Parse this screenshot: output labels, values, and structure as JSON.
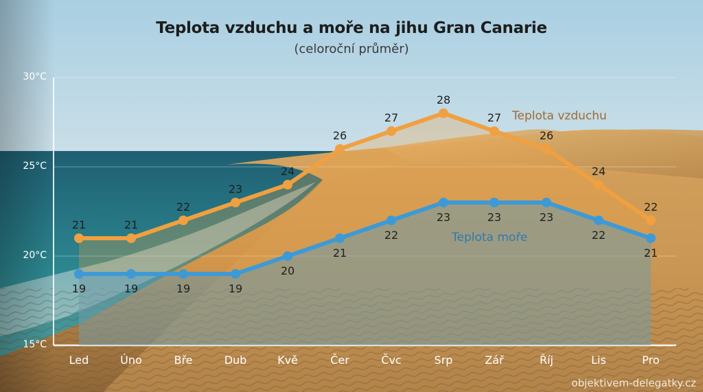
{
  "title": "Teplota vzduchu a moře na jihu Gran Canarie",
  "subtitle": "(celoroční průměr)",
  "credit": "objektivem-delegatky.cz",
  "colors": {
    "air": "#f0a040",
    "sea": "#3d9ad6",
    "air_label": "#a06a34",
    "sea_label": "#2f79a8"
  },
  "y_ticks": [
    "30°C",
    "25°C",
    "20°C",
    "15°C"
  ],
  "months": [
    "Led",
    "Úno",
    "Bře",
    "Dub",
    "Kvě",
    "Čer",
    "Čvc",
    "Srp",
    "Zář",
    "Říj",
    "Lis",
    "Pro"
  ],
  "series_labels": {
    "air": "Teplota vzduchu",
    "sea": "Teplota moře"
  },
  "chart_data": {
    "type": "area",
    "title": "Teplota vzduchu a moře na jihu Gran Canarie",
    "subtitle": "(celoroční průměr)",
    "xlabel": "",
    "ylabel": "",
    "categories": [
      "Led",
      "Úno",
      "Bře",
      "Dub",
      "Kvě",
      "Čer",
      "Čvc",
      "Srp",
      "Zář",
      "Říj",
      "Lis",
      "Pro"
    ],
    "series": [
      {
        "name": "Teplota vzduchu",
        "color": "#f0a040",
        "values": [
          21,
          21,
          22,
          23,
          24,
          26,
          27,
          28,
          27,
          26,
          24,
          22
        ]
      },
      {
        "name": "Teplota moře",
        "color": "#3d9ad6",
        "values": [
          19,
          19,
          19,
          19,
          20,
          21,
          22,
          23,
          23,
          23,
          22,
          21
        ]
      }
    ],
    "ylim": [
      15,
      30
    ],
    "yticks": [
      15,
      20,
      25,
      30
    ],
    "ytick_labels": [
      "15°C",
      "20°C",
      "25°C",
      "30°C"
    ],
    "grid": true,
    "legend": "inline labels near lines",
    "data_labels": true,
    "source": "objektivem-delegatky.cz"
  }
}
